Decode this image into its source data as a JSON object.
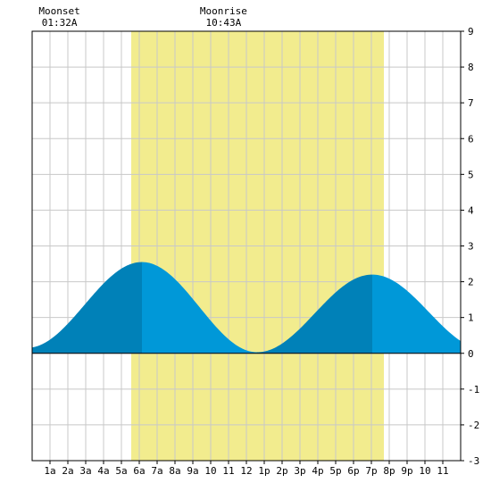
{
  "chart_data": {
    "type": "area",
    "title": "",
    "xlabel": "",
    "ylabel": "",
    "xlim": [
      0,
      24
    ],
    "ylim": [
      -3,
      9
    ],
    "grid": true,
    "x_tick_labels": [
      {
        "x": 1,
        "label": "1a"
      },
      {
        "x": 2,
        "label": "2a"
      },
      {
        "x": 3,
        "label": "3a"
      },
      {
        "x": 4,
        "label": "4a"
      },
      {
        "x": 5,
        "label": "5a"
      },
      {
        "x": 6,
        "label": "6a"
      },
      {
        "x": 7,
        "label": "7a"
      },
      {
        "x": 8,
        "label": "8a"
      },
      {
        "x": 9,
        "label": "9a"
      },
      {
        "x": 10,
        "label": "10"
      },
      {
        "x": 11,
        "label": "11"
      },
      {
        "x": 12,
        "label": "12"
      },
      {
        "x": 13,
        "label": "1p"
      },
      {
        "x": 14,
        "label": "2p"
      },
      {
        "x": 15,
        "label": "3p"
      },
      {
        "x": 16,
        "label": "4p"
      },
      {
        "x": 17,
        "label": "5p"
      },
      {
        "x": 18,
        "label": "6p"
      },
      {
        "x": 19,
        "label": "7p"
      },
      {
        "x": 20,
        "label": "8p"
      },
      {
        "x": 21,
        "label": "9p"
      },
      {
        "x": 22,
        "label": "10"
      },
      {
        "x": 23,
        "label": "11"
      }
    ],
    "y_ticks": [
      -3,
      -2,
      -1,
      0,
      1,
      2,
      3,
      4,
      5,
      6,
      7,
      8,
      9
    ],
    "daylight": {
      "start": 5.55,
      "end": 19.7
    },
    "moon_events": [
      {
        "name": "Moonset",
        "time": "01:32A",
        "x": 1.53
      },
      {
        "name": "Moonrise",
        "time": "10:43A",
        "x": 10.72
      }
    ],
    "tide_extrema": [
      {
        "x": -0.3,
        "y": 0.15
      },
      {
        "x": 6.15,
        "y": 2.55
      },
      {
        "x": 12.6,
        "y": 0.03
      },
      {
        "x": 19.05,
        "y": 2.2
      },
      {
        "x": 25.4,
        "y": 0.1
      }
    ],
    "colors": {
      "daylight": "#f2ec8e",
      "tide_dark": "#0081b8",
      "tide_light": "#0098d8",
      "grid": "#c8c8c8",
      "background": "#ffffff"
    }
  }
}
